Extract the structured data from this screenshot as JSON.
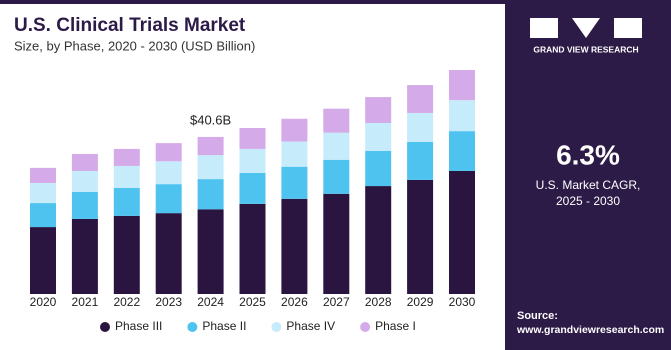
{
  "chart_data": {
    "type": "stacked_bar",
    "title": "U.S. Clinical Trials Market",
    "subtitle": "Size, by Phase, 2020 - 2030 (USD Billion)",
    "categories": [
      "2020",
      "2021",
      "2022",
      "2023",
      "2024",
      "2025",
      "2026",
      "2027",
      "2028",
      "2029",
      "2030"
    ],
    "series": [
      {
        "name": "Phase III",
        "color": "#2a1540",
        "values": [
          17.3,
          19.4,
          20.2,
          20.9,
          21.9,
          23.3,
          24.6,
          25.9,
          27.9,
          29.5,
          31.8
        ]
      },
      {
        "name": "Phase II",
        "color": "#4fc3f0",
        "values": [
          6.2,
          7.0,
          7.2,
          7.5,
          7.8,
          8.0,
          8.3,
          8.8,
          9.1,
          9.8,
          10.3
        ]
      },
      {
        "name": "Phase IV",
        "color": "#c6ecfb",
        "values": [
          5.2,
          5.4,
          5.7,
          5.9,
          6.2,
          6.2,
          6.5,
          7.0,
          7.2,
          7.5,
          8.0
        ]
      },
      {
        "name": "Phase I",
        "color": "#d5aae8",
        "values": [
          3.9,
          4.4,
          4.4,
          4.7,
          4.7,
          5.4,
          5.9,
          6.2,
          6.7,
          7.2,
          7.8
        ]
      }
    ],
    "annotation": {
      "text": "$40.6B",
      "category": "2024",
      "value": 40.6
    }
  },
  "panel": {
    "logo": "GRAND VIEW RESEARCH",
    "cagr": "6.3%",
    "cagr_label": "U.S. Market CAGR,",
    "cagr_period": "2025 - 2030",
    "source_label": "Source:",
    "source_url": "www.grandviewresearch.com"
  }
}
